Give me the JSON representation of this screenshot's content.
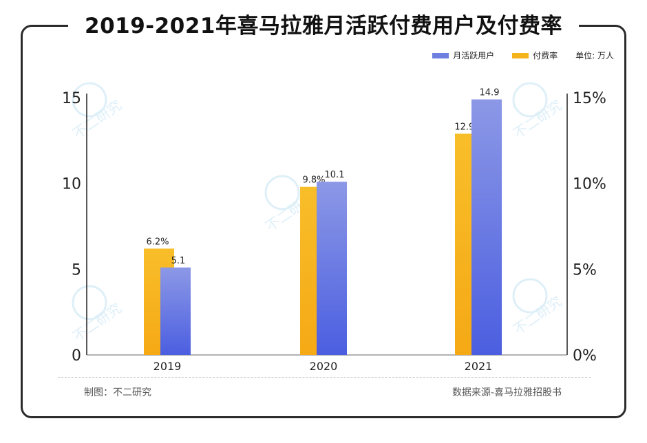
{
  "chart_data": {
    "type": "bar",
    "title": "2019-2021年喜马拉雅月活跃付费用户及付费率",
    "categories": [
      "2019",
      "2020",
      "2021"
    ],
    "series": [
      {
        "name": "付费率",
        "axis": "right",
        "color": "#f5b41e",
        "values": [
          6.2,
          9.8,
          12.9
        ],
        "labels": [
          "6.2%",
          "9.8%",
          "12.9%"
        ]
      },
      {
        "name": "月活跃用户",
        "axis": "left",
        "color": "#5b6ee0",
        "values": [
          5.1,
          10.1,
          14.9
        ],
        "labels": [
          "5.1",
          "10.1",
          "14.9"
        ]
      }
    ],
    "left_axis": {
      "ylim": [
        0,
        15
      ],
      "ticks": [
        "0",
        "5",
        "10",
        "15"
      ]
    },
    "right_axis": {
      "ylim": [
        0,
        15
      ],
      "ticks": [
        "0%",
        "5%",
        "10%",
        "15%"
      ]
    },
    "unit_label": "单位: 万人",
    "grid": false,
    "legend_position": "top-right"
  },
  "footer": {
    "left": "制图：不二研究",
    "right": "数据来源-喜马拉雅招股书"
  },
  "watermark_text": "不二研究"
}
